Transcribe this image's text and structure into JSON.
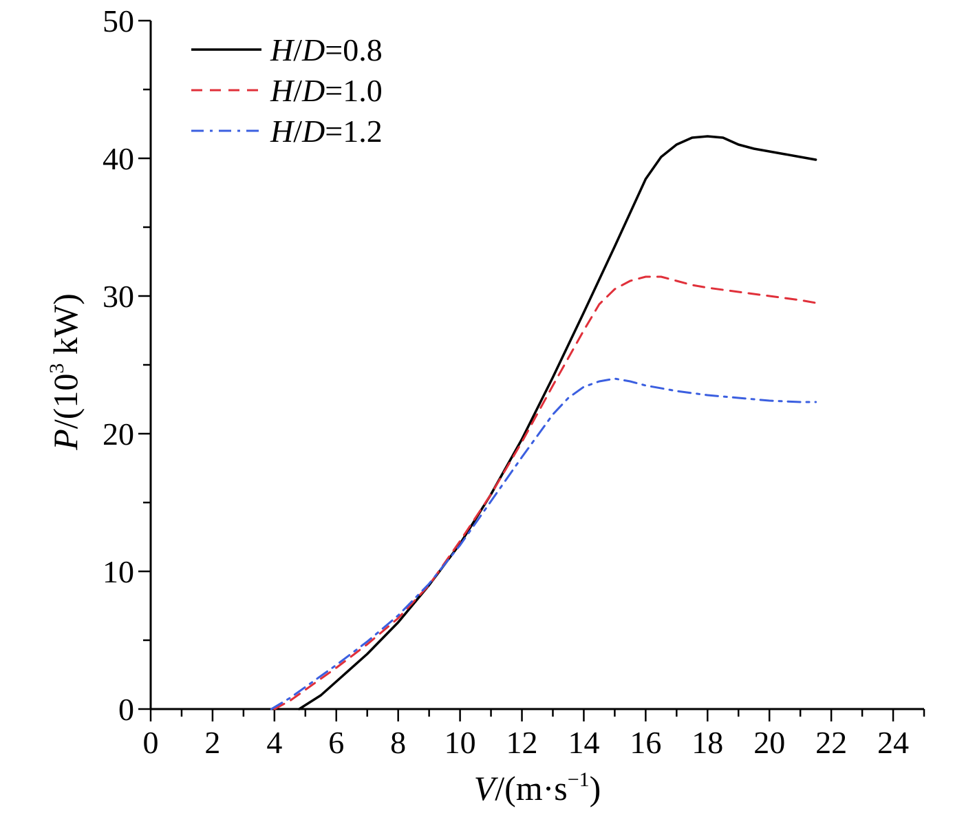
{
  "chart_data": {
    "type": "line",
    "title": "",
    "xlabel": {
      "var": "V",
      "rest": "/(m·s",
      "sup": "−1",
      "close": ")"
    },
    "ylabel": {
      "var": "P",
      "rest": "/(10",
      "sup": "3",
      "tail": " kW)"
    },
    "xlim": [
      0,
      25
    ],
    "ylim": [
      0,
      50
    ],
    "x_ticks": [
      0,
      2,
      4,
      6,
      8,
      10,
      12,
      14,
      16,
      18,
      20,
      22,
      24
    ],
    "y_ticks": [
      0,
      10,
      20,
      30,
      40,
      50
    ],
    "grid": false,
    "legend_position": "top-left",
    "series": [
      {
        "name": {
          "h": "H",
          "d": "D",
          "value": "=0.8"
        },
        "color": "#000000",
        "dash": "solid",
        "x": [
          4.8,
          5.5,
          6,
          7,
          8,
          9,
          10,
          11,
          12,
          13,
          14,
          15,
          16,
          16.5,
          17,
          17.5,
          18,
          18.5,
          19,
          19.5,
          20,
          20.5,
          21,
          21.5
        ],
        "y": [
          0,
          1.0,
          2.0,
          4.0,
          6.3,
          9.0,
          12.0,
          15.6,
          19.6,
          24.1,
          28.8,
          33.6,
          38.5,
          40.1,
          41.0,
          41.5,
          41.6,
          41.5,
          41.0,
          40.7,
          40.5,
          40.3,
          40.1,
          39.9
        ]
      },
      {
        "name": {
          "h": "H",
          "d": "D",
          "value": "=1.0"
        },
        "color": "#e0303a",
        "dash": "dashed",
        "x": [
          4.0,
          4.5,
          5,
          5.5,
          6,
          7,
          8,
          9,
          10,
          11,
          12,
          13,
          14,
          14.5,
          15,
          15.5,
          16,
          16.5,
          17,
          17.5,
          18,
          19,
          20,
          21,
          21.5
        ],
        "y": [
          0,
          0.6,
          1.4,
          2.2,
          3.0,
          4.7,
          6.6,
          9.0,
          12.2,
          15.6,
          19.4,
          23.5,
          27.5,
          29.4,
          30.5,
          31.1,
          31.4,
          31.4,
          31.1,
          30.8,
          30.6,
          30.3,
          30.0,
          29.7,
          29.5
        ]
      },
      {
        "name": {
          "h": "H",
          "d": "D",
          "value": "=1.2"
        },
        "color": "#3b5fe0",
        "dash": "dashdot",
        "x": [
          3.9,
          4.5,
          5,
          5.5,
          6,
          7,
          8,
          9,
          10,
          11,
          12,
          13,
          13.5,
          14,
          14.5,
          15,
          15.5,
          16,
          17,
          18,
          19,
          20,
          21,
          21.5
        ],
        "y": [
          0,
          0.8,
          1.6,
          2.4,
          3.2,
          4.9,
          6.8,
          9.1,
          11.9,
          15.1,
          18.3,
          21.4,
          22.6,
          23.4,
          23.8,
          24.0,
          23.8,
          23.5,
          23.1,
          22.8,
          22.6,
          22.4,
          22.3,
          22.3
        ]
      }
    ]
  }
}
